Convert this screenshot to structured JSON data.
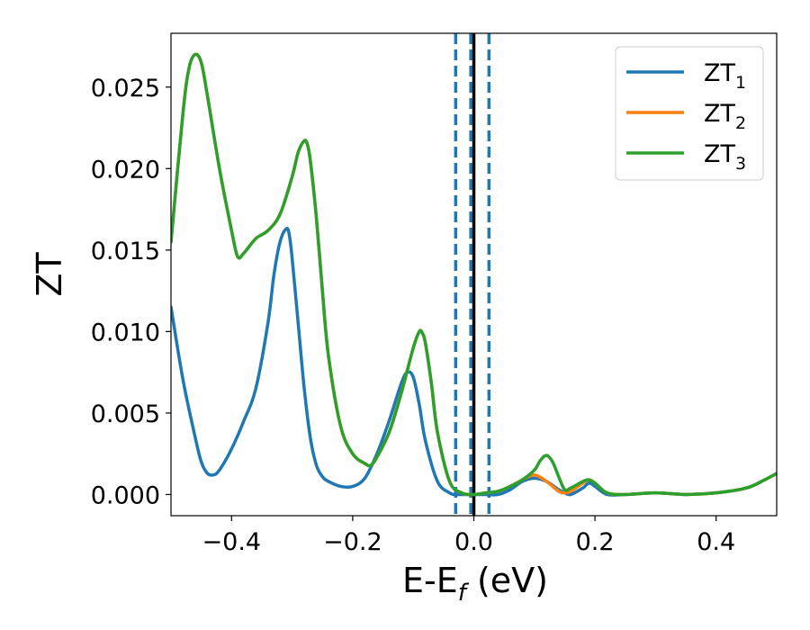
{
  "chart_data": {
    "type": "line",
    "xlabel": "E-E",
    "xlabel_sub": "f",
    "xlabel_unit": " (eV)",
    "ylabel": "ZT",
    "xlim": [
      -0.5,
      0.5
    ],
    "ylim": [
      -0.0013,
      0.0283
    ],
    "xticks": [
      -0.4,
      -0.2,
      0.0,
      0.2,
      0.4
    ],
    "xtick_labels": [
      "−0.4",
      "−0.2",
      "0.0",
      "0.2",
      "0.4"
    ],
    "yticks": [
      0.0,
      0.005,
      0.01,
      0.015,
      0.02,
      0.025
    ],
    "ytick_labels": [
      "0.000",
      "0.005",
      "0.010",
      "0.015",
      "0.020",
      "0.025"
    ],
    "legend_position": "top-right",
    "grid": false,
    "vlines": [
      {
        "x": -0.03,
        "style": "dashed",
        "color": "#1f77b4"
      },
      {
        "x": -0.005,
        "style": "dashed",
        "color": "#1f77b4"
      },
      {
        "x": 0.0,
        "style": "solid",
        "color": "#000000"
      },
      {
        "x": 0.025,
        "style": "dashed",
        "color": "#1f77b4"
      }
    ],
    "series": [
      {
        "name": "ZT",
        "sub": "1",
        "color": "#1f77b4",
        "x": [
          -0.5,
          -0.48,
          -0.46,
          -0.45,
          -0.44,
          -0.43,
          -0.42,
          -0.4,
          -0.38,
          -0.36,
          -0.34,
          -0.33,
          -0.32,
          -0.31,
          -0.305,
          -0.3,
          -0.29,
          -0.28,
          -0.27,
          -0.26,
          -0.25,
          -0.24,
          -0.22,
          -0.2,
          -0.18,
          -0.16,
          -0.14,
          -0.12,
          -0.11,
          -0.1,
          -0.09,
          -0.08,
          -0.06,
          -0.04,
          -0.03,
          -0.02,
          0.0,
          0.02,
          0.04,
          0.06,
          0.08,
          0.1,
          0.12,
          0.14,
          0.15,
          0.16,
          0.18,
          0.19,
          0.2,
          0.22,
          0.25,
          0.3,
          0.35,
          0.4,
          0.45,
          0.48,
          0.5
        ],
        "y": [
          0.0115,
          0.007,
          0.0035,
          0.002,
          0.0013,
          0.0012,
          0.0015,
          0.0028,
          0.0045,
          0.0065,
          0.0105,
          0.0135,
          0.0155,
          0.0163,
          0.016,
          0.0145,
          0.0105,
          0.0065,
          0.0035,
          0.0018,
          0.0011,
          0.0008,
          0.0005,
          0.0005,
          0.001,
          0.0025,
          0.0045,
          0.0068,
          0.0075,
          0.0072,
          0.0055,
          0.0033,
          0.0008,
          0.0001,
          0.0,
          0.0,
          0.0,
          0.0,
          0.0,
          0.0003,
          0.0008,
          0.001,
          0.0008,
          0.0003,
          0.0001,
          0.0,
          0.0004,
          0.0007,
          0.0005,
          0.0,
          0.0,
          0.0001,
          0.0,
          0.0001,
          0.0004,
          0.0009,
          0.0013
        ]
      },
      {
        "name": "ZT",
        "sub": "2",
        "color": "#ff7f0e",
        "x": [
          -0.5,
          -0.48,
          -0.47,
          -0.46,
          -0.45,
          -0.44,
          -0.42,
          -0.4,
          -0.39,
          -0.38,
          -0.36,
          -0.34,
          -0.32,
          -0.3,
          -0.29,
          -0.28,
          -0.275,
          -0.27,
          -0.26,
          -0.25,
          -0.24,
          -0.22,
          -0.2,
          -0.18,
          -0.17,
          -0.16,
          -0.14,
          -0.12,
          -0.1,
          -0.09,
          -0.085,
          -0.08,
          -0.07,
          -0.06,
          -0.04,
          -0.02,
          0.0,
          0.02,
          0.04,
          0.06,
          0.08,
          0.1,
          0.12,
          0.14,
          0.15,
          0.16,
          0.18,
          0.19,
          0.2,
          0.22,
          0.25,
          0.3,
          0.35,
          0.4,
          0.45,
          0.48,
          0.5
        ],
        "y": [
          0.0155,
          0.0235,
          0.0262,
          0.027,
          0.0265,
          0.0245,
          0.02,
          0.0162,
          0.0146,
          0.0148,
          0.0157,
          0.0162,
          0.0172,
          0.0195,
          0.021,
          0.0217,
          0.0215,
          0.0205,
          0.017,
          0.0125,
          0.0085,
          0.0042,
          0.0025,
          0.0019,
          0.0018,
          0.0023,
          0.0038,
          0.0062,
          0.009,
          0.01,
          0.0099,
          0.0093,
          0.0068,
          0.0038,
          0.0008,
          0.0001,
          0.0,
          0.0001,
          0.0002,
          0.0005,
          0.0009,
          0.0012,
          0.0008,
          0.0002,
          0.0001,
          0.0002,
          0.0007,
          0.0009,
          0.0007,
          0.0001,
          0.0,
          0.0001,
          0.0,
          0.0001,
          0.0004,
          0.0009,
          0.0013
        ]
      },
      {
        "name": "ZT",
        "sub": "3",
        "color": "#2ca02c",
        "x": [
          -0.5,
          -0.48,
          -0.47,
          -0.46,
          -0.45,
          -0.44,
          -0.42,
          -0.4,
          -0.39,
          -0.38,
          -0.36,
          -0.34,
          -0.32,
          -0.3,
          -0.29,
          -0.28,
          -0.275,
          -0.27,
          -0.26,
          -0.25,
          -0.24,
          -0.22,
          -0.2,
          -0.18,
          -0.17,
          -0.16,
          -0.14,
          -0.12,
          -0.1,
          -0.09,
          -0.085,
          -0.08,
          -0.07,
          -0.06,
          -0.04,
          -0.02,
          0.0,
          0.02,
          0.04,
          0.06,
          0.08,
          0.1,
          0.11,
          0.12,
          0.13,
          0.14,
          0.15,
          0.16,
          0.18,
          0.19,
          0.2,
          0.22,
          0.25,
          0.3,
          0.35,
          0.4,
          0.45,
          0.48,
          0.5
        ],
        "y": [
          0.0155,
          0.0235,
          0.0262,
          0.027,
          0.0265,
          0.0245,
          0.02,
          0.0162,
          0.0146,
          0.0148,
          0.0157,
          0.0162,
          0.0172,
          0.0195,
          0.021,
          0.0217,
          0.0215,
          0.0205,
          0.017,
          0.0125,
          0.0085,
          0.0042,
          0.0025,
          0.0019,
          0.0018,
          0.0023,
          0.0038,
          0.0062,
          0.009,
          0.01,
          0.0099,
          0.0093,
          0.0068,
          0.0038,
          0.0008,
          0.0001,
          0.0,
          0.0001,
          0.0002,
          0.0005,
          0.0009,
          0.0015,
          0.0021,
          0.0024,
          0.002,
          0.0011,
          0.0003,
          0.0004,
          0.0008,
          0.0009,
          0.0007,
          0.0001,
          0.0,
          0.0001,
          0.0,
          0.0001,
          0.0004,
          0.0009,
          0.0013
        ]
      }
    ]
  }
}
